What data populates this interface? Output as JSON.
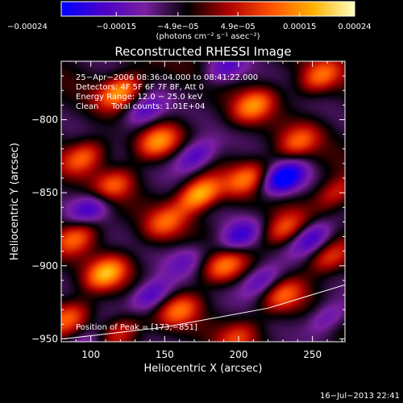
{
  "chart_data": {
    "type": "heatmap",
    "title": "Reconstructed RHESSI Image",
    "xlabel": "Heliocentric X (arcsec)",
    "ylabel": "Heliocentric Y (arcsec)",
    "xlim": [
      80,
      272
    ],
    "ylim": [
      -952,
      -760
    ],
    "x_ticks": [
      100,
      150,
      200,
      250
    ],
    "y_ticks": [
      -800,
      -850,
      -900,
      -950
    ],
    "x_tick_labels": [
      "100",
      "150",
      "200",
      "250"
    ],
    "y_tick_labels": [
      "−800",
      "−850",
      "−900",
      "−950"
    ],
    "colorbar": {
      "range": [
        -0.00024,
        0.00024
      ],
      "tick_values": [
        -0.00024,
        -0.00015,
        -4.9e-05,
        4.9e-05,
        0.00015,
        0.00024
      ],
      "tick_labels": [
        "−0.00024",
        "−0.00015",
        "−4.9e−05",
        "4.9e−05",
        "0.00015",
        "0.00024"
      ],
      "unit_label": "(photons cm⁻² s⁻¹ asec⁻²)",
      "colors": [
        "#0000ff",
        "#4a00c8",
        "#7a1fa0",
        "#000000",
        "#b00000",
        "#ff5000",
        "#ffb000",
        "#ffffc0"
      ]
    },
    "annotations": [
      "25−Apr−2006 08:36:04.000 to 08:41:22.000",
      "Detectors: 4F 5F 6F 7F 8F, Att 0",
      "Energy Range: 12.0 − 25.0 keV",
      "Clean     Total counts: 1.01E+04"
    ],
    "peak_label": "Position of Peak = [173,−851]",
    "peak": [
      173,
      -851
    ],
    "limb_points": [
      [
        82,
        -950
      ],
      [
        150,
        -942
      ],
      [
        220,
        -929
      ],
      [
        272,
        -913
      ]
    ],
    "blobs": [
      [
        173,
        -851,
        1.0
      ],
      [
        120,
        -780,
        0.82
      ],
      [
        210,
        -790,
        0.7
      ],
      [
        255,
        -770,
        0.62
      ],
      [
        95,
        -825,
        0.6
      ],
      [
        145,
        -815,
        0.72
      ],
      [
        240,
        -815,
        0.55
      ],
      [
        115,
        -845,
        0.58
      ],
      [
        205,
        -840,
        0.62
      ],
      [
        265,
        -850,
        0.5
      ],
      [
        90,
        -880,
        0.62
      ],
      [
        150,
        -870,
        0.55
      ],
      [
        230,
        -875,
        0.58
      ],
      [
        110,
        -905,
        0.85
      ],
      [
        190,
        -900,
        0.65
      ],
      [
        260,
        -895,
        0.5
      ],
      [
        85,
        -935,
        0.58
      ],
      [
        160,
        -930,
        0.6
      ],
      [
        230,
        -920,
        0.55
      ],
      [
        120,
        -945,
        0.5
      ],
      [
        200,
        -948,
        0.45
      ],
      [
        135,
        -795,
        -0.5
      ],
      [
        190,
        -765,
        -0.45
      ],
      [
        230,
        -840,
        -0.9
      ],
      [
        100,
        -860,
        -0.55
      ],
      [
        170,
        -825,
        -0.6
      ],
      [
        250,
        -880,
        -0.65
      ],
      [
        140,
        -920,
        -0.6
      ],
      [
        215,
        -910,
        -0.55
      ],
      [
        95,
        -955,
        -0.5
      ],
      [
        200,
        -880,
        -0.55
      ],
      [
        260,
        -935,
        -0.45
      ],
      [
        165,
        -895,
        -0.35
      ]
    ]
  },
  "footer": {
    "timestamp": "16−Jul−2013 22:41"
  }
}
